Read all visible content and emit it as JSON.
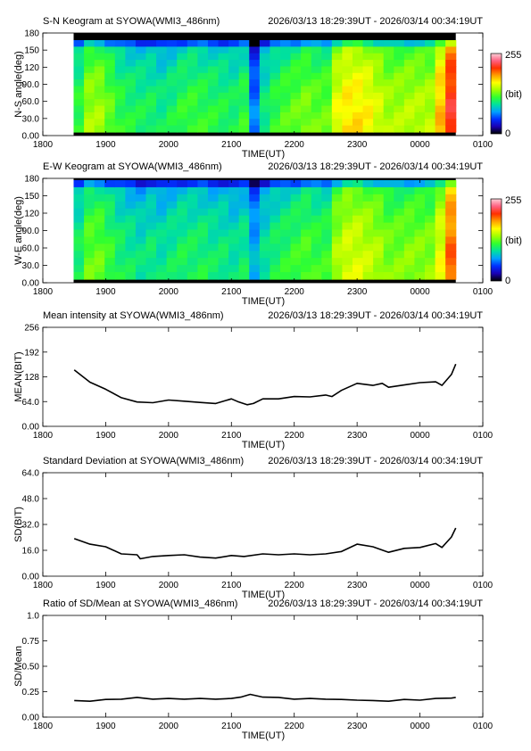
{
  "palette": {
    "axis": "#000000",
    "line": "#000000",
    "colorbar": [
      "#000000",
      "#1a00b4",
      "#0030ff",
      "#00a0ff",
      "#00e0a0",
      "#30ff30",
      "#a0ff00",
      "#ffff00",
      "#ffa000",
      "#ff3000",
      "#ff6080",
      "#ffd0d8"
    ]
  },
  "chart_data": [
    {
      "type": "heatmap",
      "title": "S-N Keogram at SYOWA(WMI3_486nm)",
      "time_range": "2026/03/13 18:29:39UT - 2026/03/14 00:34:19UT",
      "xlabel": "TIME(UT)",
      "ylabel": "N-S angle(deg)",
      "xticks": [
        "1800",
        "1900",
        "2000",
        "2100",
        "2200",
        "2300",
        "0000",
        "0100"
      ],
      "yticks": [
        "0.00",
        "30.0",
        "60.0",
        "90.0",
        "120",
        "150",
        "180"
      ],
      "ylim": [
        0,
        180
      ],
      "x_data_range_hours": [
        18.49,
        24.57
      ],
      "colorbar": {
        "min_label": "0",
        "max_label": "255",
        "unit": "(bit)"
      },
      "brightness_profile": [
        0.45,
        0.55,
        0.55,
        0.5,
        0.45,
        0.43,
        0.42,
        0.42,
        0.4,
        0.42,
        0.45,
        0.46,
        0.45,
        0.44,
        0.43,
        0.42,
        0.45,
        0.25,
        0.4,
        0.45,
        0.48,
        0.5,
        0.52,
        0.5,
        0.5,
        0.62,
        0.66,
        0.66,
        0.64,
        0.6,
        0.56,
        0.56,
        0.57,
        0.57,
        0.57,
        0.7,
        0.85
      ]
    },
    {
      "type": "heatmap",
      "title": "E-W Keogram at SYOWA(WMI3_486nm)",
      "time_range": "2026/03/13 18:29:39UT - 2026/03/14 00:34:19UT",
      "xlabel": "TIME(UT)",
      "ylabel": "W-E angle(deg)",
      "xticks": [
        "1800",
        "1900",
        "2000",
        "2100",
        "2200",
        "2300",
        "0000",
        "0100"
      ],
      "yticks": [
        "0.00",
        "30.0",
        "60.0",
        "90.0",
        "120",
        "150",
        "180"
      ],
      "ylim": [
        0,
        180
      ],
      "x_data_range_hours": [
        18.49,
        24.57
      ],
      "colorbar": {
        "min_label": "0",
        "max_label": "255",
        "unit": "(bit)"
      },
      "brightness_profile": [
        0.42,
        0.5,
        0.5,
        0.46,
        0.42,
        0.4,
        0.38,
        0.4,
        0.38,
        0.4,
        0.42,
        0.42,
        0.42,
        0.4,
        0.4,
        0.38,
        0.4,
        0.3,
        0.38,
        0.42,
        0.44,
        0.46,
        0.48,
        0.46,
        0.46,
        0.56,
        0.6,
        0.6,
        0.58,
        0.56,
        0.52,
        0.52,
        0.53,
        0.53,
        0.53,
        0.62,
        0.78
      ]
    },
    {
      "type": "line",
      "title": "Mean intensity at SYOWA(WMI3_486nm)",
      "time_range": "2026/03/13 18:29:39UT - 2026/03/14 00:34:19UT",
      "xlabel": "TIME(UT)",
      "ylabel": "MEAN(BIT)",
      "xticks": [
        "1800",
        "1900",
        "2000",
        "2100",
        "2200",
        "2300",
        "0000",
        "0100"
      ],
      "yticks": [
        "0.00",
        "64.0",
        "128",
        "192",
        "256"
      ],
      "ylim": [
        0,
        256
      ],
      "x": [
        18.5,
        18.75,
        19.0,
        19.25,
        19.5,
        19.75,
        20.0,
        20.25,
        20.5,
        20.75,
        21.0,
        21.1,
        21.25,
        21.35,
        21.5,
        21.75,
        22.0,
        22.25,
        22.5,
        22.6,
        22.75,
        23.0,
        23.25,
        23.4,
        23.5,
        23.75,
        24.0,
        24.25,
        24.35,
        24.5,
        24.57
      ],
      "series": [
        {
          "values": [
            145,
            115,
            95,
            75,
            62,
            62,
            67,
            66,
            61,
            60,
            70,
            65,
            55,
            60,
            70,
            72,
            76,
            77,
            80,
            78,
            92,
            112,
            105,
            112,
            100,
            108,
            112,
            116,
            105,
            135,
            160
          ]
        }
      ]
    },
    {
      "type": "line",
      "title": "Standard Deviation at SYOWA(WMI3_486nm)",
      "time_range": "2026/03/13 18:29:39UT - 2026/03/14 00:34:19UT",
      "xlabel": "TIME(UT)",
      "ylabel": "SD(BIT)",
      "xticks": [
        "1800",
        "1900",
        "2000",
        "2100",
        "2200",
        "2300",
        "0000",
        "0100"
      ],
      "yticks": [
        "0.00",
        "16.0",
        "32.0",
        "48.0",
        "64.0"
      ],
      "ylim": [
        0,
        64
      ],
      "x": [
        18.5,
        18.75,
        19.0,
        19.25,
        19.5,
        19.55,
        19.75,
        20.0,
        20.25,
        20.5,
        20.75,
        21.0,
        21.2,
        21.5,
        21.75,
        22.0,
        22.25,
        22.5,
        22.75,
        23.0,
        23.25,
        23.5,
        23.75,
        24.0,
        24.25,
        24.35,
        24.5,
        24.57
      ],
      "series": [
        {
          "values": [
            23,
            20,
            18,
            14,
            13,
            11,
            12,
            13,
            13,
            12,
            11,
            13,
            12,
            14,
            13,
            14,
            13,
            14,
            15,
            20,
            18,
            15,
            17,
            18,
            20,
            18,
            24,
            30
          ]
        }
      ]
    },
    {
      "type": "line",
      "title": "Ratio of SD/Mean at SYOWA(WMI3_486nm)",
      "time_range": "2026/03/13 18:29:39UT - 2026/03/14 00:34:19UT",
      "xlabel": "TIME(UT)",
      "ylabel": "SD/Mean",
      "xticks": [
        "1800",
        "1900",
        "2000",
        "2100",
        "2200",
        "2300",
        "0000",
        "0100"
      ],
      "yticks": [
        "0.00",
        "0.25",
        "0.50",
        "0.75",
        "1.0"
      ],
      "ylim": [
        0,
        1.0
      ],
      "x": [
        18.5,
        18.75,
        19.0,
        19.25,
        19.5,
        19.75,
        20.0,
        20.25,
        20.5,
        20.75,
        21.0,
        21.15,
        21.3,
        21.5,
        21.75,
        22.0,
        22.25,
        22.5,
        22.75,
        23.0,
        23.25,
        23.5,
        23.75,
        24.0,
        24.25,
        24.5,
        24.57
      ],
      "series": [
        {
          "values": [
            0.16,
            0.16,
            0.17,
            0.18,
            0.19,
            0.18,
            0.18,
            0.18,
            0.18,
            0.18,
            0.18,
            0.2,
            0.22,
            0.2,
            0.19,
            0.18,
            0.18,
            0.18,
            0.17,
            0.17,
            0.16,
            0.16,
            0.17,
            0.17,
            0.18,
            0.19,
            0.19
          ]
        }
      ]
    }
  ]
}
